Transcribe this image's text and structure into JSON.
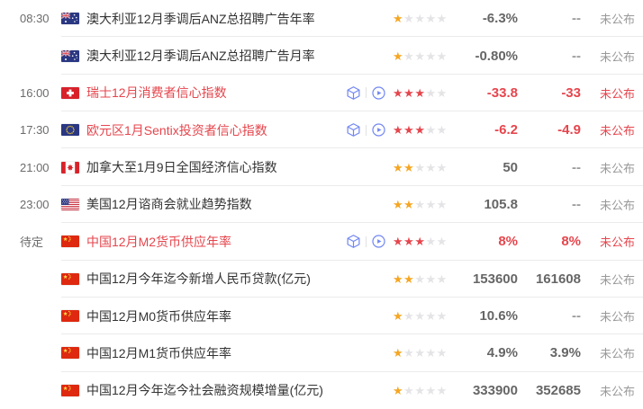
{
  "colors": {
    "accent_red": "#e5464d",
    "star_gold": "#f5a623",
    "star_empty": "#e4e4e7",
    "icon_blue": "#7186f2",
    "row_divider": "#ebebeb",
    "time_text": "#6b6b6b",
    "event_text": "#333333",
    "value_text": "#666666",
    "status_text": "#999999"
  },
  "media_icon_names": [
    "data-cube-icon",
    "video-play-icon"
  ],
  "columns": {
    "importance_stars_max": 5
  },
  "rows": [
    {
      "time": "08:30",
      "country": "australia",
      "event": "澳大利亚12月季调后ANZ总招聘广告年率",
      "important": false,
      "has_media": false,
      "stars": 1,
      "previous": "-6.3%",
      "forecast": "--",
      "actual": "未公布"
    },
    {
      "time": "",
      "country": "australia",
      "event": "澳大利亚12月季调后ANZ总招聘广告月率",
      "important": false,
      "has_media": false,
      "stars": 1,
      "previous": "-0.80%",
      "forecast": "--",
      "actual": "未公布"
    },
    {
      "time": "16:00",
      "country": "switzerland",
      "event": "瑞士12月消费者信心指数",
      "important": true,
      "has_media": true,
      "stars": 3,
      "previous": "-33.8",
      "forecast": "-33",
      "actual": "未公布"
    },
    {
      "time": "17:30",
      "country": "eu",
      "event": "欧元区1月Sentix投资者信心指数",
      "important": true,
      "has_media": true,
      "stars": 3,
      "previous": "-6.2",
      "forecast": "-4.9",
      "actual": "未公布"
    },
    {
      "time": "21:00",
      "country": "canada",
      "event": "加拿大至1月9日全国经济信心指数",
      "important": false,
      "has_media": false,
      "stars": 2,
      "previous": "50",
      "forecast": "--",
      "actual": "未公布"
    },
    {
      "time": "23:00",
      "country": "usa",
      "event": "美国12月谘商会就业趋势指数",
      "important": false,
      "has_media": false,
      "stars": 2,
      "previous": "105.8",
      "forecast": "--",
      "actual": "未公布"
    },
    {
      "time": "待定",
      "country": "china",
      "event": "中国12月M2货币供应年率",
      "important": true,
      "has_media": true,
      "stars": 3,
      "previous": "8%",
      "forecast": "8%",
      "actual": "未公布"
    },
    {
      "time": "",
      "country": "china",
      "event": "中国12月今年迄今新增人民币贷款(亿元)",
      "important": false,
      "has_media": false,
      "stars": 2,
      "previous": "153600",
      "forecast": "161608",
      "actual": "未公布"
    },
    {
      "time": "",
      "country": "china",
      "event": "中国12月M0货币供应年率",
      "important": false,
      "has_media": false,
      "stars": 1,
      "previous": "10.6%",
      "forecast": "--",
      "actual": "未公布"
    },
    {
      "time": "",
      "country": "china",
      "event": "中国12月M1货币供应年率",
      "important": false,
      "has_media": false,
      "stars": 1,
      "previous": "4.9%",
      "forecast": "3.9%",
      "actual": "未公布"
    },
    {
      "time": "",
      "country": "china",
      "event": "中国12月今年迄今社会融资规模增量(亿元)",
      "important": false,
      "has_media": false,
      "stars": 1,
      "previous": "333900",
      "forecast": "352685",
      "actual": "未公布"
    }
  ]
}
